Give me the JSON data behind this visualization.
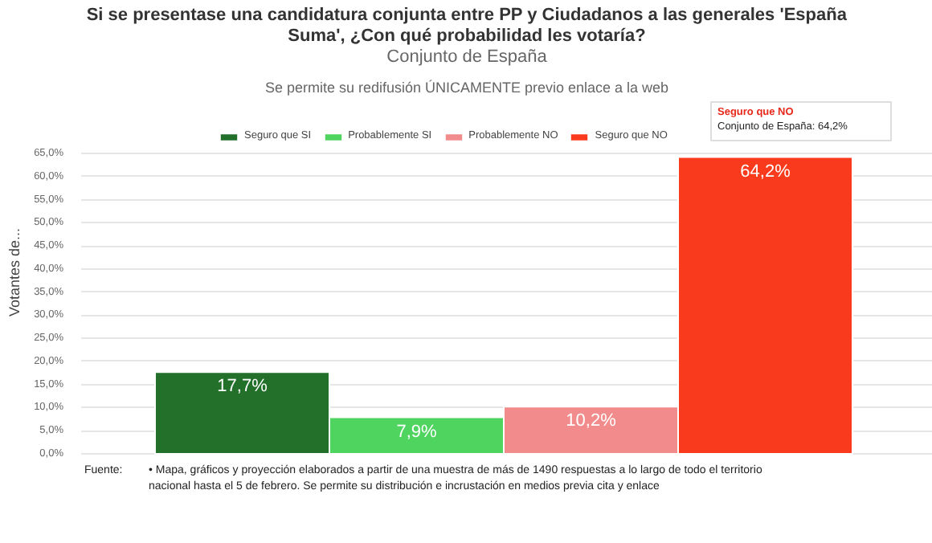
{
  "chart_data": {
    "type": "bar",
    "title": "Si se presentase una candidatura conjunta entre PP y Ciudadanos a las generales 'España Suma', ¿Con qué probabilidad les votaría?",
    "subtitle": "Conjunto de España",
    "ylabel": "Votantes de...",
    "categories": [
      null
    ],
    "series": [
      {
        "name": "Seguro que SI",
        "color": "#22702a",
        "values": [
          17.7
        ],
        "value_labels": [
          "17,7%"
        ]
      },
      {
        "name": "Probablemente SI",
        "color": "#4fd45f",
        "values": [
          7.9
        ],
        "value_labels": [
          "7,9%"
        ]
      },
      {
        "name": "Probablemente NO",
        "color": "#f28b8b",
        "values": [
          10.2
        ],
        "value_labels": [
          "10,2%"
        ]
      },
      {
        "name": "Seguro que NO",
        "color": "#fa3a1c",
        "values": [
          64.2
        ],
        "value_labels": [
          "64,2%"
        ]
      }
    ],
    "ylim": [
      0,
      65
    ],
    "yticks": [
      {
        "value": 0,
        "label": "0,0%"
      },
      {
        "value": 5,
        "label": "5,0%"
      },
      {
        "value": 10,
        "label": "10,0%"
      },
      {
        "value": 15,
        "label": "15,0%"
      },
      {
        "value": 20,
        "label": "20,0%"
      },
      {
        "value": 25,
        "label": "25,0%"
      },
      {
        "value": 30,
        "label": "30,0%"
      },
      {
        "value": 35,
        "label": "35,0%"
      },
      {
        "value": 40,
        "label": "40,0%"
      },
      {
        "value": 45,
        "label": "45,0%"
      },
      {
        "value": 50,
        "label": "50,0%"
      },
      {
        "value": 55,
        "label": "55,0%"
      },
      {
        "value": 60,
        "label": "60,0%"
      },
      {
        "value": 65,
        "label": "65,0%"
      }
    ],
    "grid": "y",
    "legend": "top",
    "annotations": [
      "Se permite su redifusión ÚNICAMENTE previo enlace a la web",
      "Seguro que NO",
      "Conjunto de España: 64,2%",
      "Fuente:",
      "• Mapa, gráficos y proyección elaborados a partir de una muestra de más de 1490 respuestas a lo largo de todo el territorio nacional hasta el 5 de febrero. Se permite su distribución e incrustación en medios previa cita y enlace"
    ]
  }
}
